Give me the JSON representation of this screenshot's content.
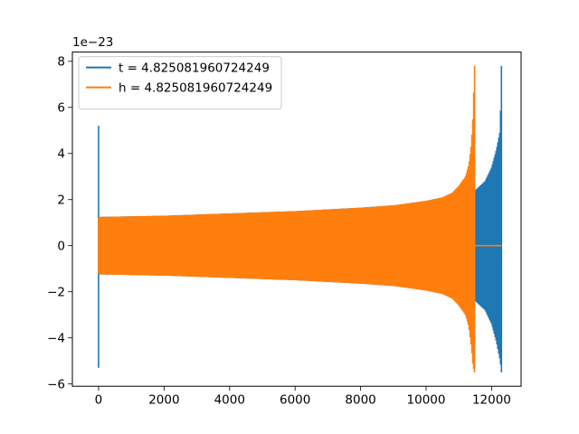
{
  "chart_data": {
    "type": "line",
    "title": "",
    "xlabel": "",
    "ylabel": "",
    "y_offset_text": "1e−23",
    "xlim": [
      -800,
      12900
    ],
    "ylim": [
      -6.1,
      8.4
    ],
    "x_ticks": [
      0,
      2000,
      4000,
      6000,
      8000,
      10000,
      12000
    ],
    "y_ticks": [
      -6,
      -4,
      -2,
      0,
      2,
      4,
      6,
      8
    ],
    "x_tick_labels": [
      "0",
      "2000",
      "4000",
      "6000",
      "8000",
      "10000",
      "12000"
    ],
    "y_tick_labels": [
      "−6",
      "−4",
      "−2",
      "0",
      "2",
      "4",
      "6",
      "8"
    ],
    "grid": false,
    "legend_position": "top-left",
    "series": [
      {
        "name": "t = 4.825081960724249",
        "color": "#1f77b4",
        "x_start": 0,
        "x_end": 12300,
        "envelope_x": [
          0,
          20,
          50,
          2000,
          4000,
          6000,
          8000,
          9500,
          10500,
          11000,
          11400,
          11500,
          11800,
          12000,
          12150,
          12260,
          12300
        ],
        "envelope_upper": [
          5.2,
          1.25,
          1.25,
          1.3,
          1.4,
          1.5,
          1.65,
          1.8,
          2.0,
          2.15,
          2.35,
          2.4,
          2.8,
          3.4,
          4.2,
          5.0,
          7.8
        ],
        "envelope_lower": [
          -5.3,
          -1.25,
          -1.25,
          -1.3,
          -1.4,
          -1.5,
          -1.65,
          -1.8,
          -2.0,
          -2.15,
          -2.35,
          -2.4,
          -2.8,
          -3.4,
          -4.2,
          -5.0,
          -5.5
        ]
      },
      {
        "name": "h = 4.825081960724249",
        "color": "#ff7f0e",
        "x_start": 0,
        "x_end": 11480,
        "envelope_x": [
          0,
          20,
          50,
          2000,
          4000,
          6000,
          8000,
          9000,
          10000,
          10500,
          10800,
          11000,
          11200,
          11300,
          11380,
          11430,
          11460,
          11480
        ],
        "envelope_upper": [
          1.2,
          1.25,
          1.25,
          1.3,
          1.4,
          1.5,
          1.65,
          1.75,
          1.95,
          2.1,
          2.3,
          2.6,
          3.0,
          3.5,
          4.4,
          5.6,
          7.0,
          7.8
        ],
        "envelope_lower": [
          -1.2,
          -1.25,
          -1.25,
          -1.3,
          -1.4,
          -1.5,
          -1.65,
          -1.75,
          -1.95,
          -2.1,
          -2.3,
          -2.6,
          -3.0,
          -3.5,
          -4.4,
          -5.2,
          -5.4,
          -5.5
        ],
        "tail_x": [
          11480,
          12300
        ],
        "tail_y": 0
      }
    ]
  }
}
